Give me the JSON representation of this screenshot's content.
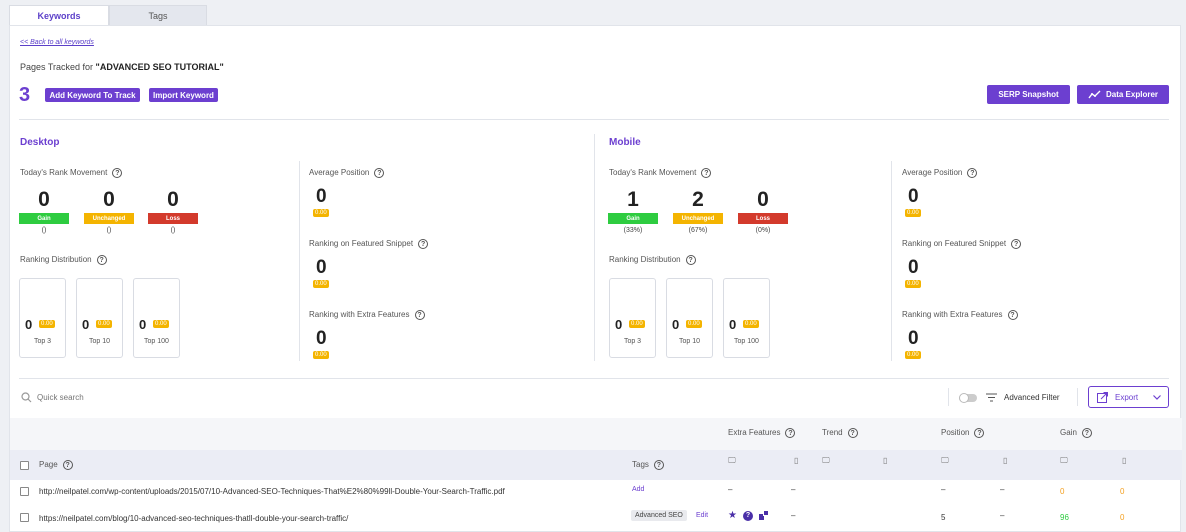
{
  "tabs": {
    "keywords": "Keywords",
    "tags": "Tags"
  },
  "back_link": "<< Back to all keywords",
  "header": {
    "prefix": "Pages Tracked for ",
    "project": "\"ADVANCED SEO TUTORIAL\"",
    "count": "3"
  },
  "buttons": {
    "add_keyword": "Add Keyword To Track",
    "import_keyword": "Import Keyword",
    "serp_snapshot": "SERP Snapshot",
    "data_explorer": "Data Explorer"
  },
  "labels": {
    "todays_rank": "Today's Rank Movement",
    "ranking_dist": "Ranking Distribution",
    "avg_position": "Average Position",
    "featured_snippet": "Ranking on Featured Snippet",
    "extra_features": "Ranking with Extra Features",
    "gain": "Gain",
    "unchanged": "Unchanged",
    "loss": "Loss",
    "top3": "Top 3",
    "top10": "Top 10",
    "top100": "Top 100"
  },
  "desktop": {
    "title": "Desktop",
    "gain": "0",
    "unchanged": "0",
    "loss": "0",
    "gain_pct": "()",
    "unchanged_pct": "()",
    "loss_pct": "()",
    "dist": [
      {
        "n": "0",
        "chip": "0.00"
      },
      {
        "n": "0",
        "chip": "0.00"
      },
      {
        "n": "0",
        "chip": "0.00"
      }
    ],
    "avg_position": "0",
    "avg_chip": "0.00",
    "featured": "0",
    "featured_chip": "0.00",
    "extra": "0",
    "extra_chip": "0.00"
  },
  "mobile": {
    "title": "Mobile",
    "gain": "1",
    "unchanged": "2",
    "loss": "0",
    "gain_pct": "(33%)",
    "unchanged_pct": "(67%)",
    "loss_pct": "(0%)",
    "dist": [
      {
        "n": "0",
        "chip": "0.00"
      },
      {
        "n": "0",
        "chip": "0.00"
      },
      {
        "n": "0",
        "chip": "0.00"
      }
    ],
    "avg_position": "0",
    "avg_chip": "0.00",
    "featured": "0",
    "featured_chip": "0.00",
    "extra": "0",
    "extra_chip": "0.00"
  },
  "toolbar": {
    "search_placeholder": "Quick search",
    "advanced_filter": "Advanced Filter",
    "export": "Export"
  },
  "table": {
    "headers": {
      "extra_features": "Extra Features",
      "trend": "Trend",
      "position": "Position",
      "gain": "Gain",
      "page": "Page",
      "tags": "Tags"
    },
    "rows": [
      {
        "url": "http://neilpatel.com/wp-content/uploads/2015/07/10-Advanced-SEO-Techniques-That%E2%80%99ll-Double-Your-Search-Traffic.pdf",
        "tag_action": "Add",
        "ef_desktop": "–",
        "ef_mobile": "–",
        "pos_desktop": "–",
        "pos_mobile": "–",
        "gain_desktop": "0",
        "gain_mobile": "0"
      },
      {
        "url": "https://neilpatel.com/blog/10-advanced-seo-techniques-thatll-double-your-search-traffic/",
        "tag": "Advanced SEO",
        "tag_action": "Edit",
        "ef_mobile": "–",
        "pos_desktop": "5",
        "pos_mobile": "–",
        "gain_desktop": "96",
        "gain_mobile": "0"
      }
    ]
  },
  "colors": {
    "accent": "#6c3fd0",
    "gain": "#2ecc40",
    "unchanged": "#f4b400",
    "loss": "#d33a2c"
  }
}
